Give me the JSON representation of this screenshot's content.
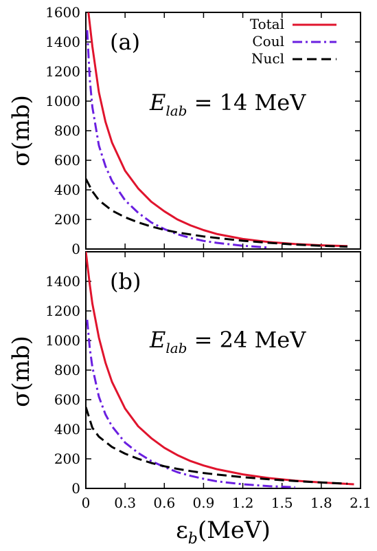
{
  "chart_data": [
    {
      "type": "line",
      "panel_label": "(a)",
      "annotation": {
        "symbol": "E",
        "subscript": "lab",
        "expression": " = 14 MeV"
      },
      "xlabel": "",
      "ylabel": "σ(mb)",
      "xlim": [
        0,
        2.1
      ],
      "ylim": [
        0,
        1600
      ],
      "yticks": [
        0,
        200,
        400,
        600,
        800,
        1000,
        1200,
        1400,
        1600
      ],
      "xticks": [
        0,
        0.3,
        0.6,
        0.9,
        1.2,
        1.5,
        1.8,
        2.1
      ],
      "legend_position": "top-right",
      "grid": false,
      "series": [
        {
          "name": "Total",
          "color": "#e0142d",
          "dash": "solid",
          "x": [
            0.02,
            0.05,
            0.1,
            0.15,
            0.2,
            0.3,
            0.4,
            0.5,
            0.6,
            0.7,
            0.8,
            0.9,
            1.0,
            1.2,
            1.4,
            1.6,
            1.8,
            2.0
          ],
          "y": [
            1600,
            1370,
            1060,
            860,
            720,
            530,
            410,
            320,
            255,
            200,
            160,
            128,
            102,
            68,
            47,
            34,
            25,
            20
          ]
        },
        {
          "name": "Coul",
          "color": "#6a1fe0",
          "dash": "dashdot",
          "x": [
            0.01,
            0.03,
            0.05,
            0.1,
            0.15,
            0.2,
            0.3,
            0.4,
            0.5,
            0.6,
            0.7,
            0.8,
            0.9,
            1.0,
            1.2,
            1.4
          ],
          "y": [
            1480,
            1150,
            960,
            700,
            560,
            460,
            330,
            245,
            180,
            135,
            100,
            75,
            55,
            42,
            22,
            10
          ]
        },
        {
          "name": "Nucl",
          "color": "#000000",
          "dash": "dashed",
          "x": [
            0.0,
            0.05,
            0.1,
            0.2,
            0.3,
            0.4,
            0.5,
            0.6,
            0.7,
            0.8,
            0.9,
            1.0,
            1.2,
            1.4,
            1.6,
            1.8,
            2.0
          ],
          "y": [
            475,
            390,
            330,
            260,
            215,
            180,
            152,
            130,
            112,
            98,
            85,
            75,
            56,
            42,
            30,
            22,
            16
          ]
        }
      ]
    },
    {
      "type": "line",
      "panel_label": "(b)",
      "annotation": {
        "symbol": "E",
        "subscript": "lab",
        "expression": " = 24 MeV"
      },
      "xlabel": "ε_b(MeV)",
      "xlabel_symbol": "ε",
      "xlabel_sub": "b",
      "xlabel_unit": "(MeV)",
      "ylabel": "σ(mb)",
      "xlim": [
        0,
        2.1
      ],
      "ylim": [
        0,
        1600
      ],
      "yticks": [
        0,
        200,
        400,
        600,
        800,
        1000,
        1200,
        1400
      ],
      "xticks": [
        0,
        0.3,
        0.6,
        0.9,
        1.2,
        1.5,
        1.8,
        2.1
      ],
      "xtick_labels": [
        "0",
        "0.3",
        "0.6",
        "0.9",
        "1.2",
        "1.5",
        "1.8",
        "2.1"
      ],
      "grid": false,
      "series": [
        {
          "name": "Total",
          "color": "#e0142d",
          "dash": "solid",
          "x": [
            0.0,
            0.03,
            0.05,
            0.1,
            0.15,
            0.2,
            0.3,
            0.4,
            0.5,
            0.6,
            0.7,
            0.8,
            0.9,
            1.0,
            1.2,
            1.4,
            1.6,
            1.8,
            2.05
          ],
          "y": [
            1600,
            1380,
            1250,
            1020,
            850,
            720,
            540,
            420,
            340,
            275,
            225,
            185,
            155,
            130,
            95,
            70,
            52,
            40,
            28
          ]
        },
        {
          "name": "Coul",
          "color": "#6a1fe0",
          "dash": "dashdot",
          "x": [
            0.01,
            0.03,
            0.05,
            0.1,
            0.15,
            0.2,
            0.3,
            0.4,
            0.5,
            0.6,
            0.7,
            0.8,
            0.9,
            1.0,
            1.2,
            1.4,
            1.6
          ],
          "y": [
            1140,
            950,
            820,
            620,
            500,
            420,
            310,
            240,
            185,
            145,
            110,
            85,
            65,
            48,
            28,
            15,
            8
          ]
        },
        {
          "name": "Nucl",
          "color": "#000000",
          "dash": "dashed",
          "x": [
            0.0,
            0.05,
            0.1,
            0.2,
            0.3,
            0.4,
            0.5,
            0.6,
            0.7,
            0.8,
            0.9,
            1.0,
            1.2,
            1.4,
            1.6,
            1.8,
            2.0
          ],
          "y": [
            550,
            410,
            350,
            280,
            235,
            200,
            172,
            150,
            132,
            117,
            104,
            94,
            76,
            62,
            50,
            40,
            32
          ]
        }
      ]
    }
  ]
}
